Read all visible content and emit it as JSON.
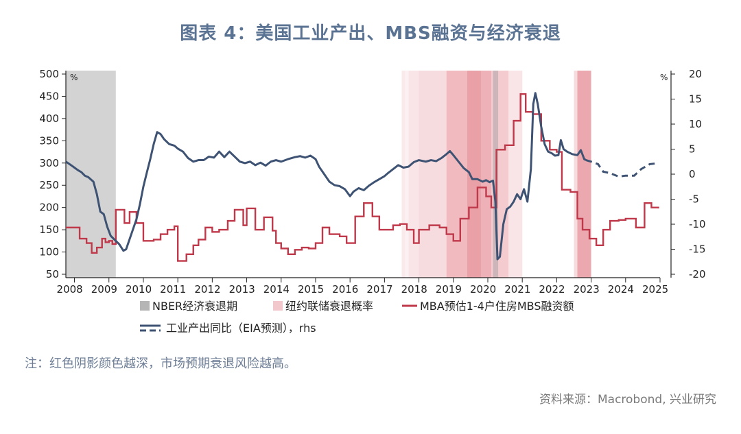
{
  "title": "图表 4：美国工业产出、MBS融资与经济衰退",
  "note": "注：红色阴影颜色越深，市场预期衰退风险越高。",
  "source": "资料来源：Macrobond, 兴业研究",
  "chart_data": {
    "type": "line",
    "left_axis": {
      "unit": "%",
      "ylim": [
        50,
        500
      ],
      "ticks": [
        500,
        450,
        400,
        350,
        300,
        250,
        200,
        150,
        100,
        50
      ]
    },
    "right_axis": {
      "unit": "%",
      "ylim": [
        -20,
        20
      ],
      "ticks": [
        20,
        15,
        10,
        5,
        0,
        -5,
        -10,
        -15,
        -20
      ]
    },
    "x_axis": {
      "xlim": [
        2007.75,
        2025.0
      ],
      "ticks": [
        "2008",
        "2009",
        "2010",
        "2011",
        "2012",
        "2013",
        "2014",
        "2015",
        "2016",
        "2017",
        "2018",
        "2019",
        "2020",
        "2021",
        "2022",
        "2023",
        "2024",
        "2025"
      ],
      "tick_positions": [
        2008,
        2009,
        2010,
        2011,
        2012,
        2013,
        2014,
        2015,
        2016,
        2017,
        2018,
        2019,
        2020,
        2021,
        2022,
        2023,
        2024,
        2025
      ]
    },
    "recession_shading": [
      [
        2007.75,
        2009.2
      ],
      [
        2020.15,
        2020.3
      ]
    ],
    "ny_fed_probability_shading": [
      {
        "range": [
          2017.5,
          2017.6
        ],
        "level": 0.12
      },
      {
        "range": [
          2017.6,
          2017.7
        ],
        "level": 0.08
      },
      {
        "range": [
          2017.7,
          2018.0
        ],
        "level": 0.15
      },
      {
        "range": [
          2018.0,
          2018.8
        ],
        "level": 0.2
      },
      {
        "range": [
          2018.8,
          2019.4
        ],
        "level": 0.4
      },
      {
        "range": [
          2019.4,
          2019.8
        ],
        "level": 0.55
      },
      {
        "range": [
          2019.8,
          2020.1
        ],
        "level": 0.45
      },
      {
        "range": [
          2020.1,
          2020.6
        ],
        "level": 0.3
      },
      {
        "range": [
          2020.6,
          2021.0
        ],
        "level": 0.15
      },
      {
        "range": [
          2022.5,
          2022.6
        ],
        "level": 0.2
      },
      {
        "range": [
          2022.6,
          2023.0
        ],
        "level": 0.5
      }
    ],
    "series": [
      {
        "name": "MBA预估1-4户住房MBS融资额",
        "axis": "left",
        "color": "#c0394a",
        "step": true,
        "points": [
          [
            2007.75,
            155
          ],
          [
            2008.0,
            155
          ],
          [
            2008.15,
            130
          ],
          [
            2008.35,
            120
          ],
          [
            2008.5,
            98
          ],
          [
            2008.65,
            110
          ],
          [
            2008.8,
            130
          ],
          [
            2008.9,
            122
          ],
          [
            2009.0,
            125
          ],
          [
            2009.1,
            118
          ],
          [
            2009.2,
            195
          ],
          [
            2009.45,
            165
          ],
          [
            2009.6,
            190
          ],
          [
            2009.8,
            165
          ],
          [
            2010.0,
            125
          ],
          [
            2010.3,
            128
          ],
          [
            2010.5,
            140
          ],
          [
            2010.7,
            150
          ],
          [
            2010.9,
            158
          ],
          [
            2011.0,
            80
          ],
          [
            2011.25,
            95
          ],
          [
            2011.45,
            115
          ],
          [
            2011.6,
            128
          ],
          [
            2011.8,
            155
          ],
          [
            2012.0,
            145
          ],
          [
            2012.2,
            150
          ],
          [
            2012.45,
            170
          ],
          [
            2012.65,
            195
          ],
          [
            2012.9,
            160
          ],
          [
            2013.0,
            198
          ],
          [
            2013.25,
            150
          ],
          [
            2013.5,
            178
          ],
          [
            2013.75,
            148
          ],
          [
            2013.85,
            120
          ],
          [
            2014.0,
            108
          ],
          [
            2014.2,
            95
          ],
          [
            2014.4,
            105
          ],
          [
            2014.6,
            110
          ],
          [
            2014.8,
            108
          ],
          [
            2015.0,
            120
          ],
          [
            2015.2,
            155
          ],
          [
            2015.4,
            140
          ],
          [
            2015.7,
            135
          ],
          [
            2015.9,
            120
          ],
          [
            2016.15,
            180
          ],
          [
            2016.4,
            210
          ],
          [
            2016.65,
            180
          ],
          [
            2016.85,
            150
          ],
          [
            2017.0,
            150
          ],
          [
            2017.25,
            160
          ],
          [
            2017.45,
            163
          ],
          [
            2017.65,
            150
          ],
          [
            2017.85,
            120
          ],
          [
            2018.0,
            150
          ],
          [
            2018.3,
            160
          ],
          [
            2018.6,
            155
          ],
          [
            2018.8,
            140
          ],
          [
            2019.0,
            125
          ],
          [
            2019.2,
            175
          ],
          [
            2019.45,
            200
          ],
          [
            2019.7,
            245
          ],
          [
            2019.95,
            225
          ],
          [
            2020.1,
            200
          ],
          [
            2020.25,
            330
          ],
          [
            2020.5,
            340
          ],
          [
            2020.75,
            395
          ],
          [
            2020.95,
            455
          ],
          [
            2021.1,
            415
          ],
          [
            2021.3,
            410
          ],
          [
            2021.55,
            350
          ],
          [
            2021.8,
            330
          ],
          [
            2022.0,
            325
          ],
          [
            2022.15,
            240
          ],
          [
            2022.4,
            235
          ],
          [
            2022.6,
            175
          ],
          [
            2022.75,
            150
          ],
          [
            2022.95,
            130
          ],
          [
            2023.15,
            115
          ],
          [
            2023.35,
            150
          ],
          [
            2023.55,
            170
          ],
          [
            2023.8,
            172
          ],
          [
            2024.0,
            175
          ],
          [
            2024.3,
            155
          ],
          [
            2024.55,
            210
          ],
          [
            2024.75,
            200
          ],
          [
            2024.95,
            198
          ]
        ]
      },
      {
        "name": "工业产出同比（EIA预测），rhs",
        "axis": "right",
        "color": "#3e5373",
        "actual_until": 2022.85,
        "points": [
          [
            2007.75,
            2.5
          ],
          [
            2007.9,
            1.8
          ],
          [
            2008.0,
            1.3
          ],
          [
            2008.1,
            0.8
          ],
          [
            2008.2,
            0.4
          ],
          [
            2008.3,
            -0.3
          ],
          [
            2008.4,
            -0.6
          ],
          [
            2008.55,
            -1.5
          ],
          [
            2008.65,
            -4.0
          ],
          [
            2008.75,
            -7.5
          ],
          [
            2008.85,
            -8.0
          ],
          [
            2008.95,
            -10.5
          ],
          [
            2009.05,
            -12.3
          ],
          [
            2009.15,
            -13.0
          ],
          [
            2009.3,
            -14.0
          ],
          [
            2009.42,
            -15.3
          ],
          [
            2009.5,
            -15.0
          ],
          [
            2009.6,
            -13.0
          ],
          [
            2009.7,
            -11.0
          ],
          [
            2009.8,
            -9.0
          ],
          [
            2009.9,
            -6.0
          ],
          [
            2010.0,
            -2.5
          ],
          [
            2010.1,
            0.3
          ],
          [
            2010.2,
            3.0
          ],
          [
            2010.3,
            6.0
          ],
          [
            2010.4,
            8.4
          ],
          [
            2010.5,
            8.0
          ],
          [
            2010.6,
            7.0
          ],
          [
            2010.75,
            6.0
          ],
          [
            2010.9,
            5.7
          ],
          [
            2011.0,
            5.1
          ],
          [
            2011.15,
            4.5
          ],
          [
            2011.3,
            3.2
          ],
          [
            2011.45,
            2.5
          ],
          [
            2011.6,
            2.8
          ],
          [
            2011.75,
            2.8
          ],
          [
            2011.9,
            3.5
          ],
          [
            2012.05,
            3.3
          ],
          [
            2012.2,
            4.5
          ],
          [
            2012.35,
            3.4
          ],
          [
            2012.5,
            4.5
          ],
          [
            2012.65,
            3.5
          ],
          [
            2012.8,
            2.5
          ],
          [
            2012.95,
            2.2
          ],
          [
            2013.1,
            2.5
          ],
          [
            2013.25,
            1.8
          ],
          [
            2013.4,
            2.3
          ],
          [
            2013.55,
            1.7
          ],
          [
            2013.7,
            2.5
          ],
          [
            2013.85,
            2.8
          ],
          [
            2014.0,
            2.5
          ],
          [
            2014.2,
            3.0
          ],
          [
            2014.4,
            3.4
          ],
          [
            2014.55,
            3.6
          ],
          [
            2014.7,
            3.3
          ],
          [
            2014.85,
            3.7
          ],
          [
            2015.0,
            3.0
          ],
          [
            2015.1,
            1.5
          ],
          [
            2015.25,
            0.0
          ],
          [
            2015.4,
            -1.5
          ],
          [
            2015.55,
            -2.2
          ],
          [
            2015.7,
            -2.4
          ],
          [
            2015.85,
            -3.0
          ],
          [
            2016.0,
            -4.4
          ],
          [
            2016.1,
            -3.5
          ],
          [
            2016.25,
            -2.8
          ],
          [
            2016.4,
            -3.2
          ],
          [
            2016.55,
            -2.3
          ],
          [
            2016.7,
            -1.6
          ],
          [
            2016.85,
            -1.0
          ],
          [
            2017.0,
            -0.4
          ],
          [
            2017.1,
            0.2
          ],
          [
            2017.25,
            1.0
          ],
          [
            2017.4,
            1.8
          ],
          [
            2017.55,
            1.3
          ],
          [
            2017.7,
            1.5
          ],
          [
            2017.85,
            2.4
          ],
          [
            2018.0,
            2.8
          ],
          [
            2018.2,
            2.5
          ],
          [
            2018.35,
            2.8
          ],
          [
            2018.5,
            2.6
          ],
          [
            2018.65,
            3.2
          ],
          [
            2018.8,
            4.0
          ],
          [
            2018.9,
            4.6
          ],
          [
            2019.0,
            3.8
          ],
          [
            2019.15,
            2.5
          ],
          [
            2019.3,
            1.2
          ],
          [
            2019.45,
            0.4
          ],
          [
            2019.55,
            -1.0
          ],
          [
            2019.7,
            -1.0
          ],
          [
            2019.85,
            -1.5
          ],
          [
            2019.95,
            -1.2
          ],
          [
            2020.05,
            -1.6
          ],
          [
            2020.15,
            -1.3
          ],
          [
            2020.22,
            -5.5
          ],
          [
            2020.28,
            -17.0
          ],
          [
            2020.35,
            -16.5
          ],
          [
            2020.45,
            -10.0
          ],
          [
            2020.55,
            -7.0
          ],
          [
            2020.65,
            -6.5
          ],
          [
            2020.75,
            -5.5
          ],
          [
            2020.85,
            -4.0
          ],
          [
            2020.95,
            -5.0
          ],
          [
            2021.05,
            -3.0
          ],
          [
            2021.15,
            -5.5
          ],
          [
            2021.25,
            1.0
          ],
          [
            2021.32,
            14.0
          ],
          [
            2021.38,
            16.2
          ],
          [
            2021.45,
            14.0
          ],
          [
            2021.55,
            9.5
          ],
          [
            2021.65,
            6.0
          ],
          [
            2021.75,
            4.5
          ],
          [
            2021.85,
            4.2
          ],
          [
            2021.95,
            3.7
          ],
          [
            2022.05,
            3.8
          ],
          [
            2022.12,
            6.8
          ],
          [
            2022.2,
            5.0
          ],
          [
            2022.3,
            4.5
          ],
          [
            2022.45,
            4.0
          ],
          [
            2022.6,
            3.8
          ],
          [
            2022.7,
            4.8
          ],
          [
            2022.8,
            3.0
          ],
          [
            2022.85,
            2.8
          ],
          [
            2023.0,
            2.5
          ],
          [
            2023.2,
            2.0
          ],
          [
            2023.35,
            0.5
          ],
          [
            2023.55,
            0.2
          ],
          [
            2023.8,
            -0.5
          ],
          [
            2024.0,
            -0.3
          ],
          [
            2024.25,
            -0.3
          ],
          [
            2024.45,
            1.0
          ],
          [
            2024.7,
            2.0
          ],
          [
            2024.95,
            2.2
          ]
        ]
      }
    ],
    "legend": {
      "position": "bottom",
      "items": [
        {
          "key": "nber",
          "label": "NBER经济衰退期"
        },
        {
          "key": "nyfed",
          "label": "纽约联储衰退概率"
        },
        {
          "key": "mba",
          "label": "MBA预估1-4户住房MBS融资额"
        },
        {
          "key": "ip",
          "label": "工业产出同比（EIA预测），rhs"
        }
      ]
    }
  }
}
